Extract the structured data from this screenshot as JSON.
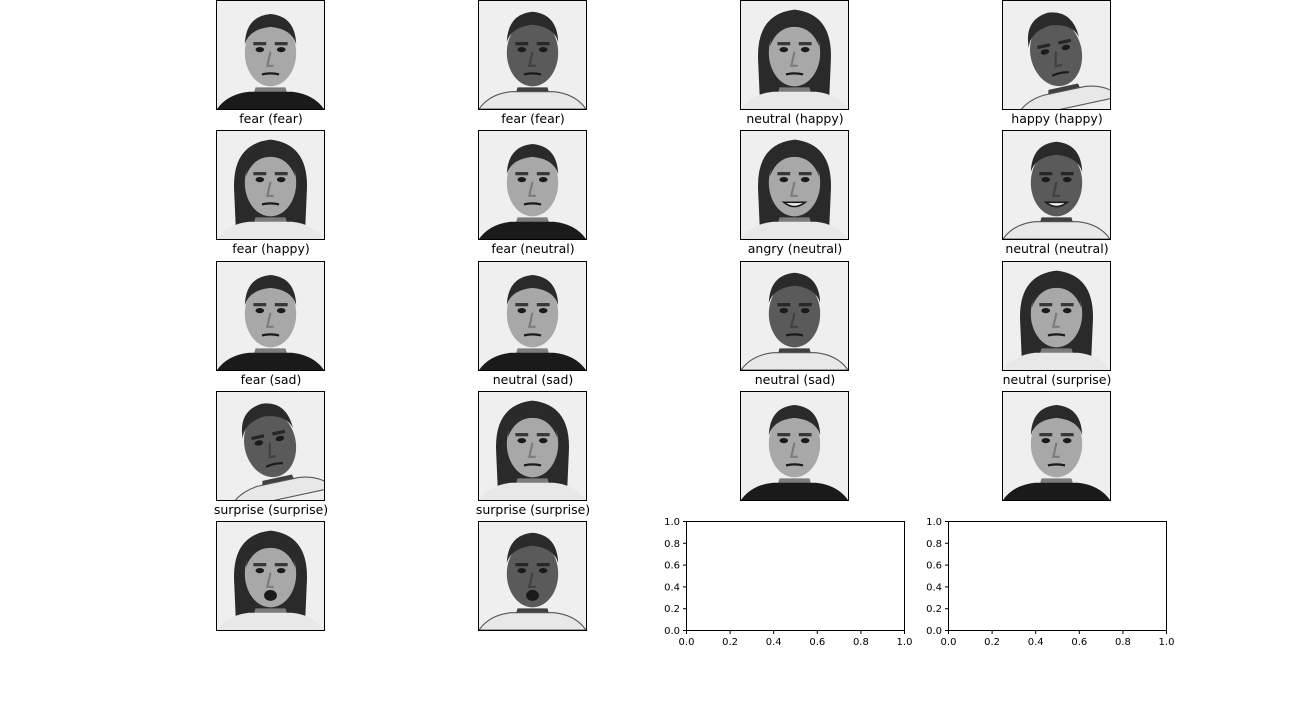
{
  "chart_data": {
    "type": "image_grid",
    "images": [
      {
        "caption": "fear (fear)",
        "face": "man-bald-dark-shirt"
      },
      {
        "caption": "fear (fear)",
        "face": "young-man-curly-hair"
      },
      {
        "caption": "neutral (happy)",
        "face": "woman-long-hair"
      },
      {
        "caption": "happy (happy)",
        "face": "young-man-tilted-head"
      },
      {
        "caption": "fear (happy)",
        "face": "woman-long-hair"
      },
      {
        "caption": "fear (neutral)",
        "face": "man-bald-dark-shirt"
      },
      {
        "caption": "angry (neutral)",
        "face": "woman-smiling"
      },
      {
        "caption": "neutral (neutral)",
        "face": "young-man-smiling"
      },
      {
        "caption": "fear (sad)",
        "face": "man-bald-dark-shirt"
      },
      {
        "caption": "neutral (sad)",
        "face": "man-bald-dark-shirt"
      },
      {
        "caption": "neutral (sad)",
        "face": "young-man-curly-hair"
      },
      {
        "caption": "neutral (surprise)",
        "face": "woman-long-hair"
      },
      {
        "caption": "surprise (surprise)",
        "face": "young-man-tilted-head"
      },
      {
        "caption": "surprise (surprise)",
        "face": "woman-long-hair"
      },
      {
        "caption": "",
        "face": "man-bald-dark-shirt"
      },
      {
        "caption": "",
        "face": "man-bald-dark-shirt"
      },
      {
        "caption": "",
        "face": "woman-surprised"
      },
      {
        "caption": "",
        "face": "young-man-surprised"
      }
    ],
    "empty_axes": [
      {
        "xlim": [
          0,
          1
        ],
        "ylim": [
          0,
          1
        ],
        "xticks": [
          "0.0",
          "0.2",
          "0.4",
          "0.6",
          "0.8",
          "1.0"
        ],
        "yticks": [
          "0.0",
          "0.2",
          "0.4",
          "0.6",
          "0.8",
          "1.0"
        ]
      },
      {
        "xlim": [
          0,
          1
        ],
        "ylim": [
          0,
          1
        ],
        "xticks": [
          "0.0",
          "0.2",
          "0.4",
          "0.6",
          "0.8",
          "1.0"
        ],
        "yticks": [
          "0.0",
          "0.2",
          "0.4",
          "0.6",
          "0.8",
          "1.0"
        ]
      }
    ],
    "colormap": "gray"
  }
}
